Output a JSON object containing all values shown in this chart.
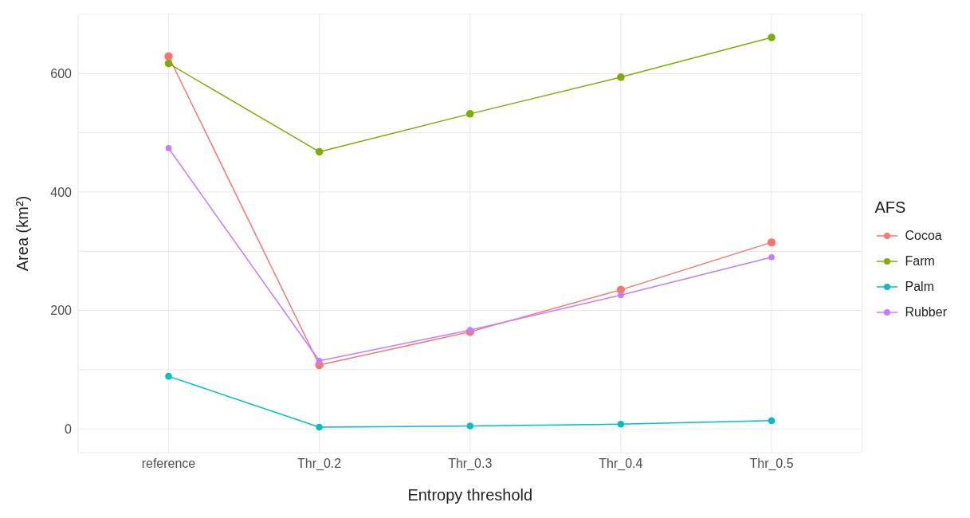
{
  "chart_data": {
    "type": "line",
    "xlabel": "Entropy threshold",
    "ylabel": "Area (km²)",
    "legend_title": "AFS",
    "categories": [
      "reference",
      "Thr_0.2",
      "Thr_0.3",
      "Thr_0.4",
      "Thr_0.5"
    ],
    "series": [
      {
        "name": "Cocoa",
        "color": "#f8766d",
        "values": [
          629,
          108,
          164,
          235,
          315
        ]
      },
      {
        "name": "Farm",
        "color": "#7cae00",
        "values": [
          617,
          468,
          532,
          594,
          661
        ]
      },
      {
        "name": "Palm",
        "color": "#00bfc4",
        "values": [
          89,
          3,
          5,
          8,
          14
        ]
      },
      {
        "name": "Rubber",
        "color": "#c77cff",
        "values": [
          474,
          115,
          167,
          226,
          290
        ]
      }
    ],
    "ylim": [
      -40,
      700
    ],
    "yticks": [
      0,
      {
        "value": 100,
        "label": null
      },
      200,
      {
        "value": 300,
        "label": null
      },
      400,
      {
        "value": 500,
        "label": null
      },
      600
    ],
    "grid": true,
    "legend": "right",
    "marker": "circle",
    "line_style": "solid"
  }
}
